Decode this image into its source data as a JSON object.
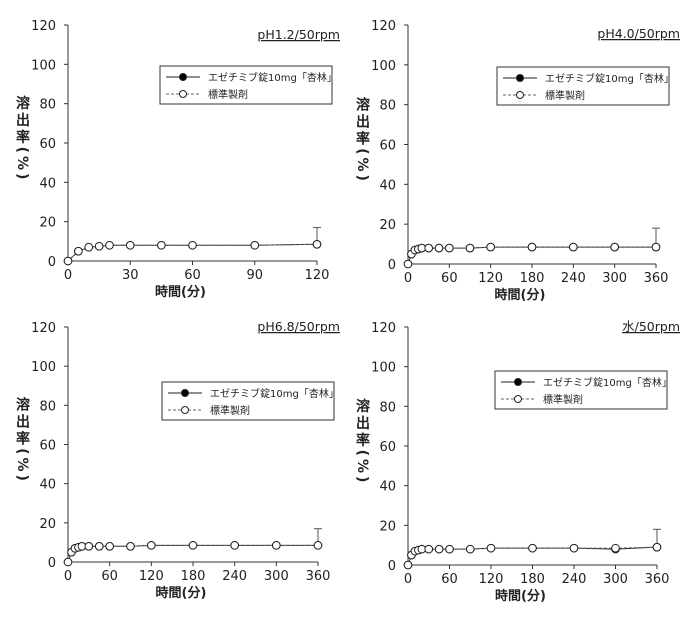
{
  "chart_data": [
    {
      "type": "line",
      "title": "pH1.2/50rpm",
      "xlabel": "時間(分)",
      "ylabel": "溶出率(%)",
      "xlim": [
        0,
        120
      ],
      "ylim": [
        0,
        120
      ],
      "xticks": [
        0,
        30,
        60,
        90,
        120
      ],
      "xtick_labels": [
        "0",
        "30",
        "60",
        "90",
        "120"
      ],
      "yticks": [
        0,
        20,
        40,
        60,
        80,
        100,
        120
      ],
      "ytick_labels": [
        "0",
        "20",
        "40",
        "60",
        "80",
        "100",
        "120"
      ],
      "legend_position": "top-right",
      "series": [
        {
          "name": "エゼチミブ錠10mg「杏林」",
          "marker": "filled-circle",
          "line": "solid",
          "x": [
            0,
            5,
            10,
            15,
            20,
            30,
            45,
            60,
            90,
            120
          ],
          "y": [
            0,
            5,
            7,
            7.5,
            8,
            8,
            8,
            8,
            8,
            8.5
          ]
        },
        {
          "name": "標準製剤",
          "marker": "open-circle",
          "line": "dashed",
          "x": [
            0,
            5,
            10,
            15,
            20,
            30,
            45,
            60,
            90,
            120
          ],
          "y": [
            0,
            5,
            7,
            7.5,
            8,
            8,
            8,
            8,
            8,
            8.5
          ],
          "error_top": {
            "x": 120,
            "y": 8.5,
            "high": 17
          }
        }
      ]
    },
    {
      "type": "line",
      "title": "pH4.0/50rpm",
      "xlabel": "時間(分)",
      "ylabel": "溶出率(%)",
      "xlim": [
        0,
        360
      ],
      "ylim": [
        0,
        120
      ],
      "xticks": [
        0,
        60,
        120,
        180,
        240,
        300,
        360
      ],
      "xtick_labels": [
        "0",
        "60",
        "120",
        "180",
        "240",
        "300",
        "360"
      ],
      "yticks": [
        0,
        20,
        40,
        60,
        80,
        100,
        120
      ],
      "ytick_labels": [
        "0",
        "20",
        "40",
        "60",
        "80",
        "100",
        "120"
      ],
      "legend_position": "top-right",
      "series": [
        {
          "name": "エゼチミブ錠10mg「杏林」",
          "marker": "filled-circle",
          "line": "solid",
          "x": [
            0,
            5,
            10,
            15,
            20,
            30,
            45,
            60,
            90,
            120,
            180,
            240,
            300,
            360
          ],
          "y": [
            0,
            5,
            7,
            7.5,
            8,
            8,
            8,
            8,
            8,
            8.5,
            8.5,
            8.5,
            8.5,
            8.5
          ]
        },
        {
          "name": "標準製剤",
          "marker": "open-circle",
          "line": "dashed",
          "x": [
            0,
            5,
            10,
            15,
            20,
            30,
            45,
            60,
            90,
            120,
            180,
            240,
            300,
            360
          ],
          "y": [
            0,
            5,
            7,
            7.5,
            8,
            8,
            8,
            8,
            8,
            8.5,
            8.5,
            8.5,
            8.5,
            8.5
          ],
          "error_top": {
            "x": 360,
            "y": 8.5,
            "high": 18
          }
        }
      ]
    },
    {
      "type": "line",
      "title": "pH6.8/50rpm",
      "xlabel": "時間(分)",
      "ylabel": "溶出率(%)",
      "xlim": [
        0,
        360
      ],
      "ylim": [
        0,
        120
      ],
      "xticks": [
        0,
        60,
        120,
        180,
        240,
        300,
        360
      ],
      "xtick_labels": [
        "0",
        "60",
        "120",
        "180",
        "240",
        "300",
        "360"
      ],
      "yticks": [
        0,
        20,
        40,
        60,
        80,
        100,
        120
      ],
      "ytick_labels": [
        "0",
        "20",
        "40",
        "60",
        "80",
        "100",
        "120"
      ],
      "legend_position": "top-right",
      "series": [
        {
          "name": "エゼチミブ錠10mg「杏林」",
          "marker": "filled-circle",
          "line": "solid",
          "x": [
            0,
            5,
            10,
            15,
            20,
            30,
            45,
            60,
            90,
            120,
            180,
            240,
            300,
            360
          ],
          "y": [
            0,
            5,
            7,
            7.5,
            8,
            8,
            8,
            8,
            8,
            8.5,
            8.5,
            8.5,
            8.5,
            8.5
          ]
        },
        {
          "name": "標準製剤",
          "marker": "open-circle",
          "line": "dashed",
          "x": [
            0,
            5,
            10,
            15,
            20,
            30,
            45,
            60,
            90,
            120,
            180,
            240,
            300,
            360
          ],
          "y": [
            0,
            5,
            7,
            7.5,
            8,
            8,
            8,
            8,
            8,
            8.5,
            8.5,
            8.5,
            8.5,
            8.5
          ],
          "error_top": {
            "x": 360,
            "y": 8.5,
            "high": 17
          }
        }
      ]
    },
    {
      "type": "line",
      "title": "水/50rpm",
      "xlabel": "時間(分)",
      "ylabel": "溶出率(%)",
      "xlim": [
        0,
        360
      ],
      "ylim": [
        0,
        120
      ],
      "xticks": [
        0,
        60,
        120,
        180,
        240,
        300,
        360
      ],
      "xtick_labels": [
        "0",
        "60",
        "120",
        "180",
        "240",
        "300",
        "360"
      ],
      "yticks": [
        0,
        20,
        40,
        60,
        80,
        100,
        120
      ],
      "ytick_labels": [
        "0",
        "20",
        "40",
        "60",
        "80",
        "100",
        "120"
      ],
      "legend_position": "top-right",
      "series": [
        {
          "name": "エゼチミブ錠10mg「杏林」",
          "marker": "filled-circle",
          "line": "solid",
          "x": [
            0,
            5,
            10,
            15,
            20,
            30,
            45,
            60,
            90,
            120,
            180,
            240,
            300,
            360
          ],
          "y": [
            0,
            5,
            7,
            7.5,
            8,
            8,
            8,
            8,
            8,
            8.5,
            8.5,
            8.5,
            8,
            9
          ]
        },
        {
          "name": "標準製剤",
          "marker": "open-circle",
          "line": "dashed",
          "x": [
            0,
            5,
            10,
            15,
            20,
            30,
            45,
            60,
            90,
            120,
            180,
            240,
            300,
            360
          ],
          "y": [
            0,
            5,
            7,
            7.5,
            8,
            8,
            8,
            8,
            8,
            8.5,
            8.5,
            8.5,
            8.5,
            9
          ],
          "error_top": {
            "x": 360,
            "y": 9,
            "high": 18
          }
        }
      ]
    }
  ]
}
